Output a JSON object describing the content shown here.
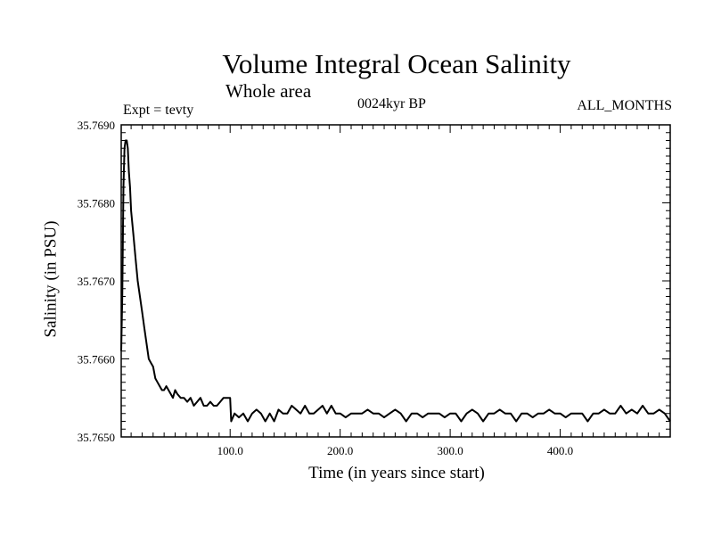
{
  "chart_data": {
    "type": "line",
    "title": "Volume Integral Ocean Salinity",
    "subtitle": "Whole area",
    "annotations": {
      "experiment": "Expt = tevty",
      "period": "0024kyr BP",
      "months": "ALL_MONTHS"
    },
    "xlabel": "Time (in years since start)",
    "ylabel": "Salinity (in PSU)",
    "xlim": [
      1,
      500
    ],
    "ylim": [
      35.765,
      35.769
    ],
    "x_tick_labels": [
      "100.0",
      "200.0",
      "300.0",
      "400.0"
    ],
    "x_tick_values": [
      100,
      200,
      300,
      400
    ],
    "y_tick_labels": [
      "35.7650",
      "35.7660",
      "35.7670",
      "35.7680",
      "35.7690"
    ],
    "y_tick_values": [
      35.765,
      35.766,
      35.767,
      35.768,
      35.769
    ],
    "grid": false,
    "series": [
      {
        "color": "#000000",
        "x": [
          1,
          2,
          3,
          4,
          5,
          6,
          7,
          8,
          9,
          10,
          12,
          14,
          16,
          18,
          20,
          22,
          24,
          26,
          28,
          30,
          32,
          34,
          36,
          38,
          40,
          42,
          44,
          46,
          48,
          50,
          52,
          55,
          58,
          61,
          64,
          67,
          70,
          73,
          76,
          79,
          82,
          85,
          88,
          91,
          94,
          97,
          99,
          100,
          101,
          104,
          108,
          112,
          116,
          120,
          124,
          128,
          132,
          136,
          140,
          144,
          148,
          152,
          156,
          160,
          164,
          168,
          172,
          176,
          180,
          184,
          188,
          192,
          196,
          200,
          205,
          210,
          215,
          220,
          225,
          230,
          235,
          240,
          245,
          250,
          255,
          260,
          265,
          270,
          275,
          280,
          285,
          290,
          295,
          300,
          305,
          310,
          315,
          320,
          325,
          330,
          335,
          340,
          345,
          350,
          355,
          360,
          365,
          370,
          375,
          380,
          385,
          390,
          395,
          400,
          405,
          410,
          415,
          420,
          425,
          430,
          435,
          440,
          445,
          450,
          455,
          460,
          465,
          470,
          475,
          480,
          485,
          490,
          495,
          500
        ],
        "values": [
          35.7661,
          35.7668,
          35.7682,
          35.7687,
          35.7688,
          35.7688,
          35.7687,
          35.7684,
          35.7682,
          35.7679,
          35.7676,
          35.7673,
          35.767,
          35.7668,
          35.7666,
          35.7664,
          35.7662,
          35.766,
          35.76595,
          35.7659,
          35.76575,
          35.7657,
          35.76565,
          35.7656,
          35.7656,
          35.76565,
          35.7656,
          35.76555,
          35.7655,
          35.7656,
          35.76555,
          35.7655,
          35.7655,
          35.76545,
          35.7655,
          35.7654,
          35.76545,
          35.7655,
          35.7654,
          35.7654,
          35.76545,
          35.7654,
          35.7654,
          35.76545,
          35.7655,
          35.7655,
          35.7655,
          35.7655,
          35.7652,
          35.7653,
          35.76525,
          35.7653,
          35.7652,
          35.7653,
          35.76535,
          35.7653,
          35.7652,
          35.7653,
          35.7652,
          35.76535,
          35.7653,
          35.7653,
          35.7654,
          35.76535,
          35.7653,
          35.7654,
          35.7653,
          35.7653,
          35.76535,
          35.7654,
          35.7653,
          35.7654,
          35.7653,
          35.7653,
          35.76525,
          35.7653,
          35.7653,
          35.7653,
          35.76535,
          35.7653,
          35.7653,
          35.76525,
          35.7653,
          35.76535,
          35.7653,
          35.7652,
          35.7653,
          35.7653,
          35.76525,
          35.7653,
          35.7653,
          35.7653,
          35.76525,
          35.7653,
          35.7653,
          35.7652,
          35.7653,
          35.76535,
          35.7653,
          35.7652,
          35.7653,
          35.7653,
          35.76535,
          35.7653,
          35.7653,
          35.7652,
          35.7653,
          35.7653,
          35.76525,
          35.7653,
          35.7653,
          35.76535,
          35.7653,
          35.7653,
          35.76525,
          35.7653,
          35.7653,
          35.7653,
          35.7652,
          35.7653,
          35.7653,
          35.76535,
          35.7653,
          35.7653,
          35.7654,
          35.7653,
          35.76535,
          35.7653,
          35.7654,
          35.7653,
          35.7653,
          35.76535,
          35.7653,
          35.7652
        ]
      }
    ]
  }
}
